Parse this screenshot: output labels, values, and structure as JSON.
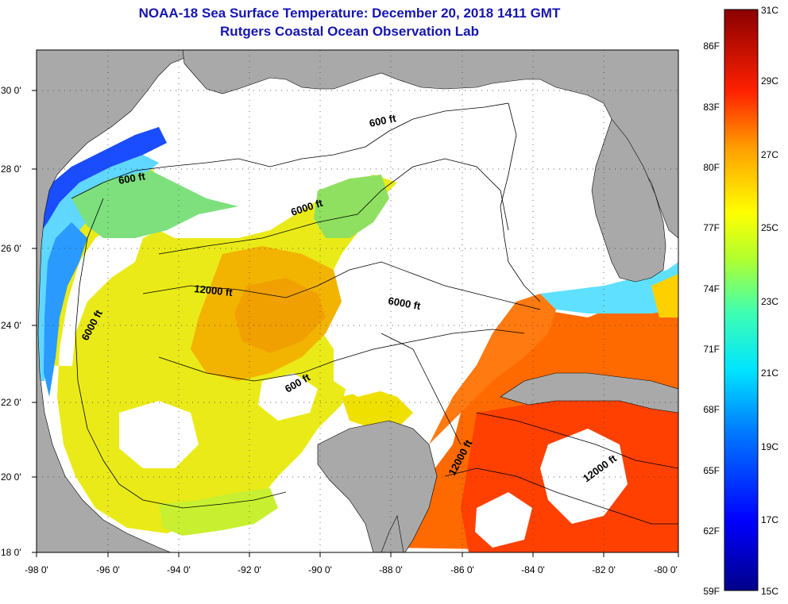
{
  "header": {
    "title": "NOAA-18 Sea Surface Temperature:  December 20, 2018 1411 GMT",
    "subtitle": "Rutgers Coastal Ocean Observation Lab"
  },
  "axes": {
    "lat_labels": [
      "30 0'",
      "28 0'",
      "26 0'",
      "24 0'",
      "22 0'",
      "20 0'",
      "18 0'"
    ],
    "lon_labels": [
      "-98 0'",
      "-96 0'",
      "-94 0'",
      "-92 0'",
      "-90 0'",
      "-88 0'",
      "-86 0'",
      "-84 0'",
      "-82 0'",
      "-80 0'"
    ]
  },
  "contour_labels": [
    "600 ft",
    "600 ft",
    "6000 ft",
    "12000 ft",
    "6000 ft",
    "6000 ft",
    "600 ft",
    "12000 ft",
    "12000 ft"
  ],
  "colorbar": {
    "fahrenheit": [
      "86F",
      "83F",
      "80F",
      "77F",
      "74F",
      "71F",
      "68F",
      "65F",
      "62F",
      "59F"
    ],
    "celsius": [
      "31C",
      "29C",
      "27C",
      "25C",
      "23C",
      "21C",
      "19C",
      "17C",
      "15C"
    ]
  },
  "colors": {
    "land": "#a9a9a9",
    "no_data": "#ffffff",
    "title": "#1515b0"
  }
}
